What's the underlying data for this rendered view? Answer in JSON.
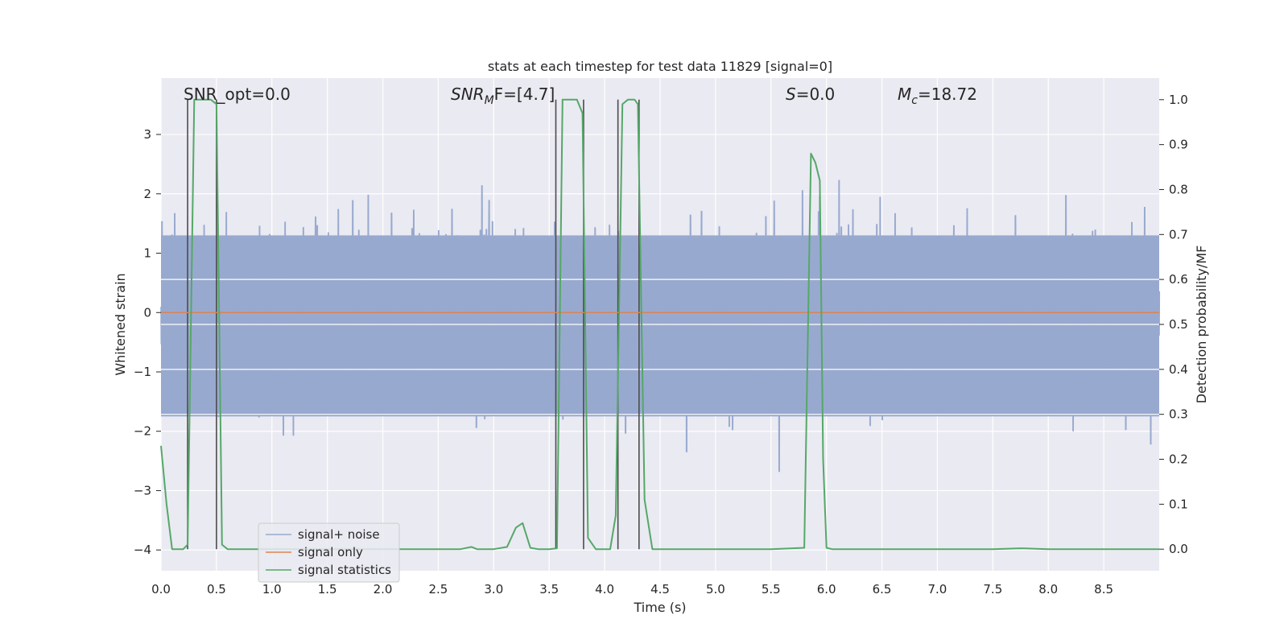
{
  "chart_data": {
    "type": "line",
    "title": "stats at each timestep for test data 11829 [signal=0]",
    "xlabel": "Time (s)",
    "ylabel": "Whitened strain",
    "y2label": "Detection probability/MF",
    "xlim": [
      0,
      9.0
    ],
    "ylim": [
      -4.35,
      3.95
    ],
    "y2lim": [
      -0.048,
      1.048
    ],
    "grid": true,
    "legend_position": "lower-left",
    "x_ticks": [
      "0.0",
      "0.5",
      "1.0",
      "1.5",
      "2.0",
      "2.5",
      "3.0",
      "3.5",
      "4.0",
      "4.5",
      "5.0",
      "5.5",
      "6.0",
      "6.5",
      "7.0",
      "7.5",
      "8.0",
      "8.5"
    ],
    "y_ticks": [
      "−4",
      "−3",
      "−2",
      "−1",
      "0",
      "1",
      "2",
      "3"
    ],
    "y2_ticks": [
      "0.0",
      "0.1",
      "0.2",
      "0.3",
      "0.4",
      "0.5",
      "0.6",
      "0.7",
      "0.8",
      "0.9",
      "1.0"
    ],
    "annotations": {
      "snr_opt": "SNR_opt=0.0",
      "snr_mf_main": "SNR",
      "snr_mf_sub": "M",
      "snr_mf_rest": "F=[4.7]",
      "s_main": "S",
      "s_rest": "=0.0",
      "mc_main": "M",
      "mc_sub": "c",
      "mc_rest": "=18.72"
    },
    "vertical_markers": [
      0.24,
      0.5,
      3.56,
      3.81,
      4.12,
      4.31
    ],
    "series": [
      {
        "name": "signal+ noise",
        "color": "#98a9cf",
        "note_values": "noise envelope, amplitude roughly -3.3 to 3.5 around 0"
      },
      {
        "name": "signal only",
        "color": "#dd8452",
        "x": [
          0,
          9.0
        ],
        "y": [
          0,
          0
        ]
      },
      {
        "name": "signal statistics",
        "color": "#55a868",
        "axis": "right",
        "x": [
          0.0,
          0.05,
          0.1,
          0.2,
          0.24,
          0.3,
          0.45,
          0.5,
          0.55,
          0.6,
          0.7,
          1.0,
          1.5,
          2.0,
          2.5,
          2.7,
          2.8,
          2.85,
          3.0,
          3.12,
          3.2,
          3.26,
          3.33,
          3.4,
          3.5,
          3.57,
          3.62,
          3.75,
          3.8,
          3.85,
          3.92,
          4.0,
          4.05,
          4.1,
          4.16,
          4.21,
          4.27,
          4.3,
          4.36,
          4.43,
          4.5,
          5.0,
          5.5,
          5.8,
          5.86,
          5.9,
          5.94,
          5.97,
          6.0,
          6.05,
          6.5,
          7.0,
          7.5,
          7.75,
          8.0,
          8.5,
          9.0
        ],
        "y": [
          0.23,
          0.1,
          0.0,
          0.0,
          0.01,
          1.0,
          1.0,
          0.99,
          0.01,
          0.0,
          0.0,
          0.0,
          0.0,
          0.0,
          0.0,
          0.0,
          0.005,
          0.0,
          0.0,
          0.005,
          0.048,
          0.058,
          0.003,
          0.0,
          0.0,
          0.002,
          1.0,
          1.0,
          0.97,
          0.025,
          0.0,
          0.0,
          0.0,
          0.075,
          0.99,
          1.0,
          1.0,
          0.99,
          0.11,
          0.0,
          0.0,
          0.0,
          0.0,
          0.003,
          0.88,
          0.86,
          0.82,
          0.2,
          0.003,
          0.0,
          0.0,
          0.0,
          0.0,
          0.002,
          0.0,
          0.0,
          0.0
        ]
      }
    ]
  },
  "colors": {
    "axes_bg": "#eaeaf2",
    "grid": "#ffffff",
    "marker_line": "#4c4c4c"
  }
}
